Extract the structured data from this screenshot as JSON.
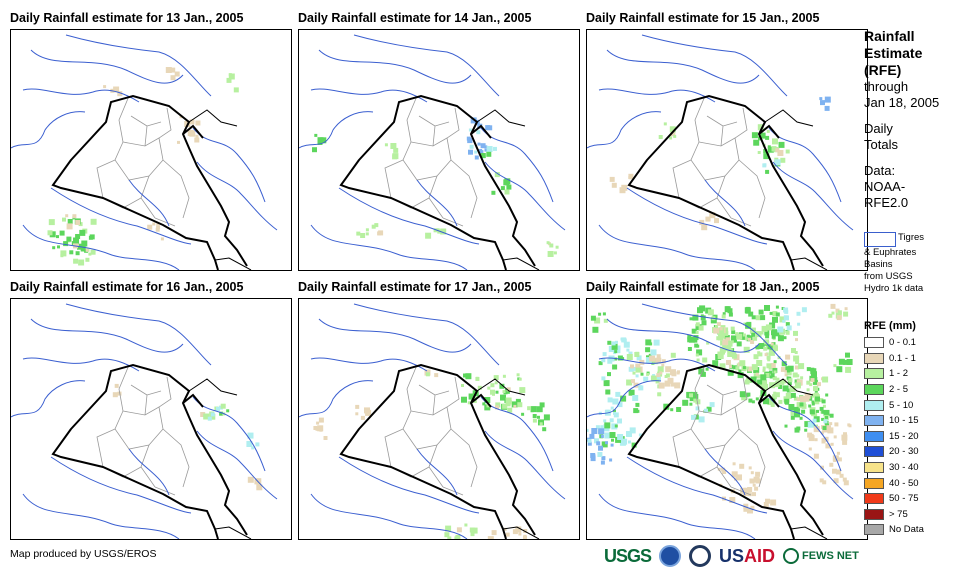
{
  "panels": [
    {
      "title": "Daily Rainfall estimate for 13 Jan., 2005"
    },
    {
      "title": "Daily Rainfall estimate for 14 Jan., 2005"
    },
    {
      "title": "Daily Rainfall estimate for 15 Jan., 2005"
    },
    {
      "title": "Daily Rainfall estimate for 16 Jan., 2005"
    },
    {
      "title": "Daily Rainfall estimate for 17 Jan., 2005"
    },
    {
      "title": "Daily Rainfall estimate for 18 Jan., 2005"
    }
  ],
  "sidebar": {
    "line1": "Rainfall",
    "line2": "Estimate",
    "line3": "(RFE)",
    "line4": "through",
    "line5": "Jan 18, 2005",
    "line6": "Daily",
    "line7": "Totals",
    "line8": "Data:",
    "line9": "NOAA-",
    "line10": "RFE2.0"
  },
  "basin_note": {
    "line1": "Tigres",
    "line2": "& Euphrates",
    "line3": "Basins",
    "line4": "from USGS",
    "line5": "Hydro 1k data"
  },
  "legend": {
    "title": "RFE (mm)",
    "items": [
      {
        "label": "0 - 0.1",
        "color": "#ffffff"
      },
      {
        "label": "0.1 - 1",
        "color": "#e8d7b8"
      },
      {
        "label": "1 - 2",
        "color": "#b7f0a0"
      },
      {
        "label": "2 - 5",
        "color": "#5cd65c"
      },
      {
        "label": "5 - 10",
        "color": "#b0eef0"
      },
      {
        "label": "10 - 15",
        "color": "#7fb2f0"
      },
      {
        "label": "15 - 20",
        "color": "#3f8ef0"
      },
      {
        "label": "20 - 30",
        "color": "#1f4fd6"
      },
      {
        "label": "30 - 40",
        "color": "#f7e38a"
      },
      {
        "label": "40 - 50",
        "color": "#f5a623"
      },
      {
        "label": "50 - 75",
        "color": "#f03a1a"
      },
      {
        "label": "> 75",
        "color": "#9a1515"
      },
      {
        "label": "No Data",
        "color": "#a8a8a8"
      }
    ]
  },
  "credit": "Map produced by USGS/EROS",
  "logos": {
    "usgs": "USGS",
    "usaid_us": "US",
    "usaid_aid": "AID",
    "fews": "FEWS NET"
  }
}
